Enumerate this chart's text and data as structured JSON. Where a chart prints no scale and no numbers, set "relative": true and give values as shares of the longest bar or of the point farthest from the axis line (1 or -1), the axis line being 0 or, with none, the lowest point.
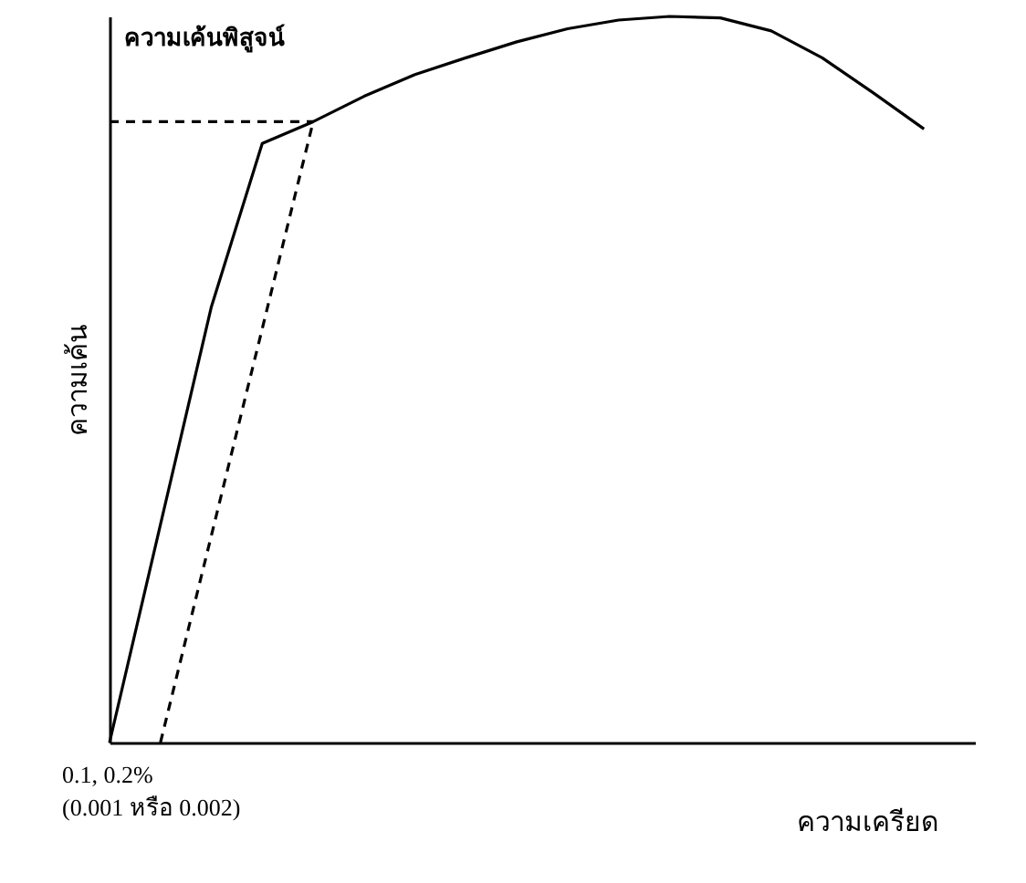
{
  "chart_data": {
    "type": "line",
    "relative": true,
    "xlabel": "ความเครียด",
    "ylabel": "ความเค้น",
    "annotations": [
      "ความเค้นพิสูจน์",
      "0.1, 0.2%\n(0.001 หรือ 0.002)"
    ],
    "categories": [
      null,
      null,
      null,
      null,
      null,
      null,
      null,
      null,
      null,
      null,
      null,
      null,
      null,
      null,
      null,
      null,
      null,
      null
    ],
    "series": [
      {
        "color": "#000000",
        "line_style": "solid",
        "values": [
          0,
          0.3,
          0.6,
          0.825,
          0.855,
          0.89,
          0.92,
          0.943,
          0.965,
          0.983,
          0.995,
          1.0,
          0.998,
          0.98,
          0.943,
          0.895,
          0.845,
          null
        ]
      },
      {
        "color": "#000000",
        "line_style": "dashed",
        "values": [
          null,
          0,
          null,
          null,
          0.855,
          null,
          null,
          null,
          null,
          null,
          null,
          null,
          null,
          null,
          null,
          null,
          null,
          null
        ]
      },
      {
        "color": "#000000",
        "line_style": "dashed",
        "values": [
          0.855,
          0.855,
          0.855,
          0.855,
          0.855,
          null,
          null,
          null,
          null,
          null,
          null,
          null,
          null,
          null,
          null,
          null,
          null,
          null
        ]
      }
    ]
  }
}
